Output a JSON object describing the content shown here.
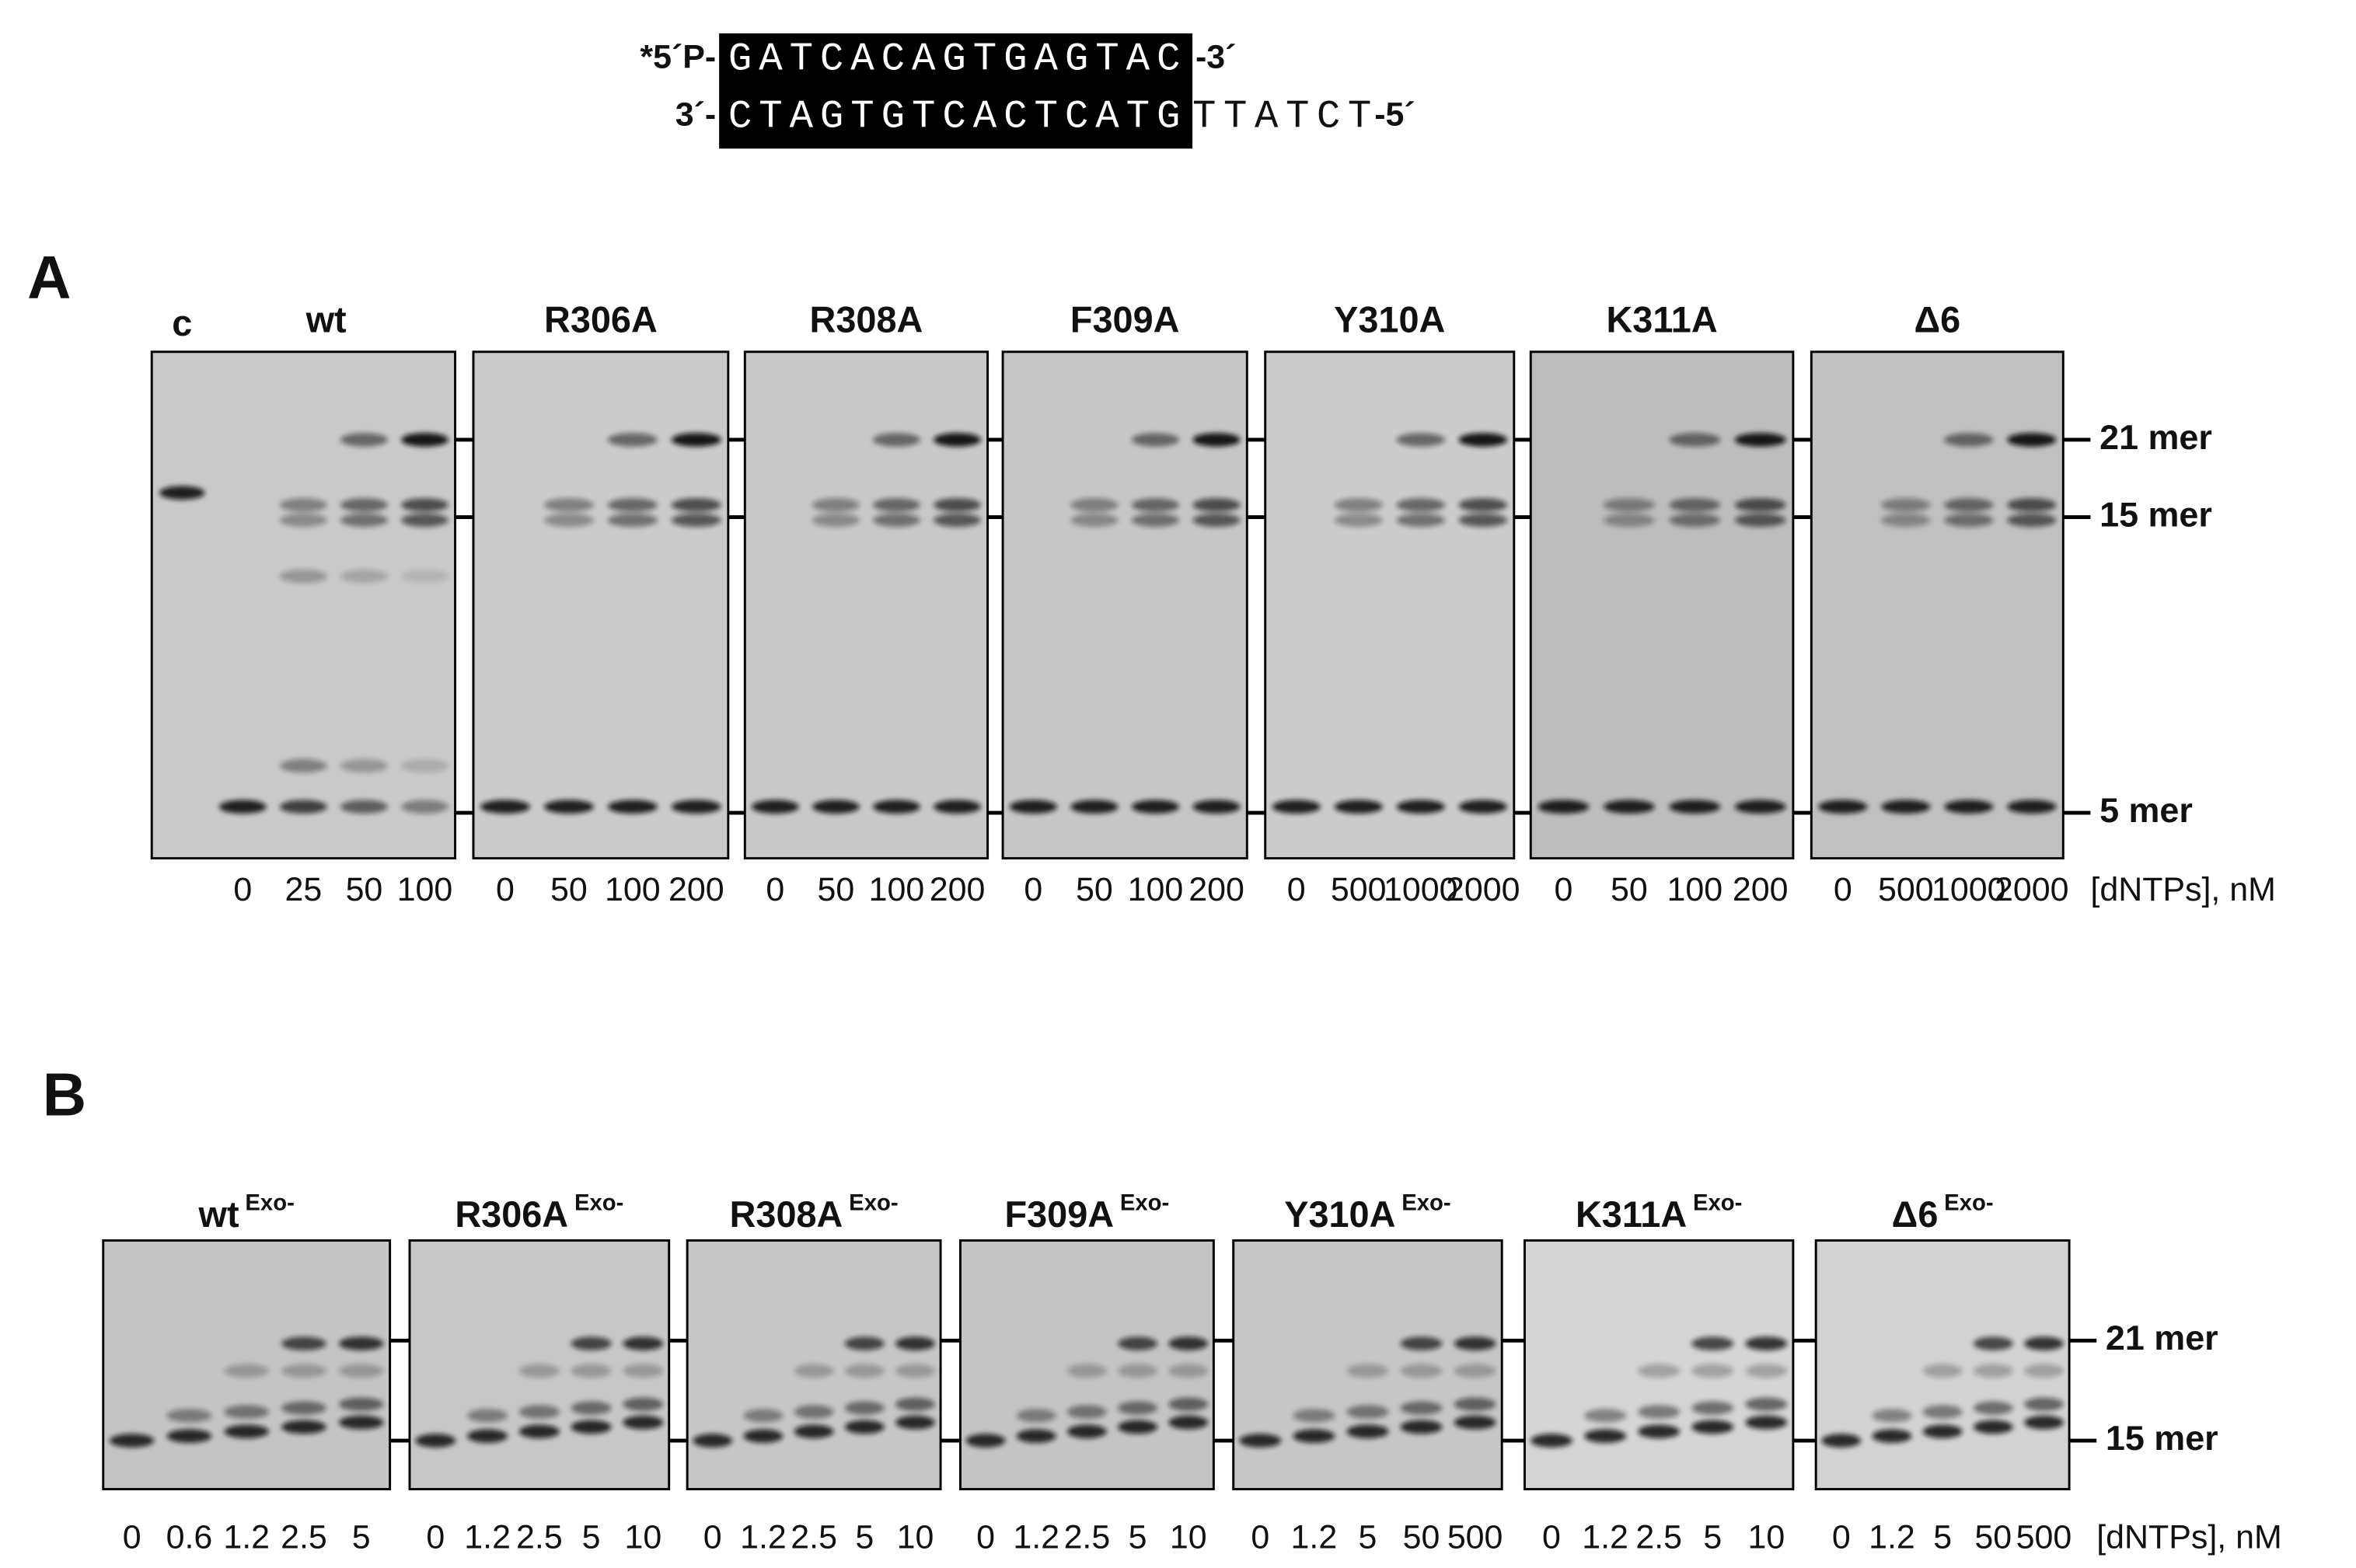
{
  "substrate": {
    "top": {
      "prefix": "*5´P-",
      "sequence": "GATCACAGTGAGTAC",
      "suffix": "-3´"
    },
    "bottom": {
      "prefix": "3´-",
      "paired": "CTAGTGTCACTCATG",
      "overhang": "TTATCT",
      "suffix": "-5´"
    }
  },
  "panels": [
    {
      "label": "A",
      "control": "c",
      "gels": [
        {
          "title": "wt",
          "lanes": [
            "0",
            "25",
            "50",
            "100"
          ]
        },
        {
          "title": "R306A",
          "lanes": [
            "0",
            "50",
            "100",
            "200"
          ]
        },
        {
          "title": "R308A",
          "lanes": [
            "0",
            "50",
            "100",
            "200"
          ]
        },
        {
          "title": "F309A",
          "lanes": [
            "0",
            "50",
            "100",
            "200"
          ]
        },
        {
          "title": "Y310A",
          "lanes": [
            "0",
            "500",
            "1000",
            "2000"
          ]
        },
        {
          "title": "K311A",
          "lanes": [
            "0",
            "50",
            "100",
            "200"
          ]
        },
        {
          "title": "Δ6",
          "lanes": [
            "0",
            "500",
            "1000",
            "2000"
          ]
        }
      ],
      "markers": [
        "21 mer",
        "15 mer",
        "5 mer"
      ],
      "x_label": "[dNTPs], nM"
    },
    {
      "label": "B",
      "gels": [
        {
          "title": "wt",
          "superscript": "Exo-",
          "lanes": [
            "0",
            "0.6",
            "1.2",
            "2.5",
            "5"
          ]
        },
        {
          "title": "R306A",
          "superscript": "Exo-",
          "lanes": [
            "0",
            "1.2",
            "2.5",
            "5",
            "10"
          ]
        },
        {
          "title": "R308A",
          "superscript": "Exo-",
          "lanes": [
            "0",
            "1.2",
            "2.5",
            "5",
            "10"
          ]
        },
        {
          "title": "F309A",
          "superscript": "Exo-",
          "lanes": [
            "0",
            "1.2",
            "2.5",
            "5",
            "10"
          ]
        },
        {
          "title": "Y310A",
          "superscript": "Exo-",
          "lanes": [
            "0",
            "1.2",
            "5",
            "50",
            "500"
          ]
        },
        {
          "title": "K311A",
          "superscript": "Exo-",
          "lanes": [
            "0",
            "1.2",
            "2.5",
            "5",
            "10"
          ]
        },
        {
          "title": "Δ6",
          "superscript": "Exo-",
          "lanes": [
            "0",
            "1.2",
            "5",
            "50",
            "500"
          ]
        }
      ],
      "markers": [
        "21 mer",
        "15 mer"
      ],
      "x_label": "[dNTPs], nM"
    }
  ]
}
